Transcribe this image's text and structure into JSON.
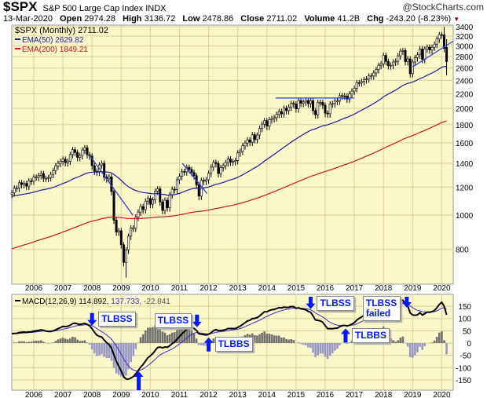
{
  "header": {
    "symbol": "$SPX",
    "name": "S&P 500 Large Cap Index",
    "exchange": "INDX",
    "brand": "@StockCharts.com",
    "date": "13-Mar-2020",
    "open_label": "Open",
    "open": "2974.28",
    "high_label": "High",
    "high": "3136.72",
    "low_label": "Low",
    "low": "2478.86",
    "close_label": "Close",
    "close": "2711.02",
    "volume_label": "Volume",
    "volume": "41.2B",
    "chg_label": "Chg",
    "chg": "-243.20 (-8.23%)"
  },
  "legend": {
    "price": "$SPX (Monthly) 2711.02",
    "ema50": "EMA(50) 2629.82",
    "ema200": "EMA(200) 1849.21",
    "macd": "MACD(12,26,9) 114.892,",
    "macd_signal": " 137.733,",
    "macd_hist": " -22.841"
  },
  "colors": {
    "background": "#faf7c8",
    "grid": "#d9d49c",
    "ema50": "#1a1aa0",
    "ema200": "#d0102a",
    "signal": "#3c2ccc",
    "hist_pos": "#707070",
    "hist_neg": "#9898c8",
    "annotation": "#0018ff",
    "trendline": "#2b3ee0"
  },
  "annotations": [
    {
      "text": "TLBSS",
      "panel": "macd",
      "date": 2008.0,
      "dir": "down"
    },
    {
      "text": "TLBSS",
      "panel": "macd",
      "date": 2011.6,
      "dir": "down"
    },
    {
      "text": "TLBBS",
      "panel": "macd",
      "date": 2012.0,
      "dir": "up"
    },
    {
      "text": "TLBSS",
      "panel": "macd",
      "date": 2015.5,
      "dir": "down"
    },
    {
      "text": "TLBBS",
      "panel": "macd",
      "date": 2016.7,
      "dir": "up"
    },
    {
      "text": "TLBSS failed",
      "panel": "macd",
      "date": 2018.8,
      "dir": "down"
    },
    {
      "text": "",
      "panel": "macd",
      "date": 2009.6,
      "dir": "up"
    }
  ],
  "chart_data": {
    "type": "candlestick",
    "title": "$SPX S&P 500 Large Cap Index (Monthly)",
    "start": "2005-04",
    "interval": "month",
    "y_scale": "log",
    "ylim": [
      660,
      3500
    ],
    "y_ticks": [
      800,
      1000,
      1200,
      1400,
      1600,
      1800,
      2000,
      2200,
      2400,
      2600,
      2800,
      3000,
      3200,
      3400
    ],
    "x_ticks": [
      "2006",
      "2007",
      "2008",
      "2009",
      "2010",
      "2011",
      "2012",
      "2013",
      "2014",
      "2015",
      "2016",
      "2017",
      "2018",
      "2019",
      "2020"
    ],
    "close": [
      1156,
      1191,
      1191,
      1234,
      1220,
      1228,
      1207,
      1249,
      1248,
      1280,
      1280,
      1294,
      1310,
      1270,
      1270,
      1276,
      1303,
      1335,
      1377,
      1400,
      1418,
      1438,
      1406,
      1420,
      1482,
      1530,
      1503,
      1455,
      1473,
      1526,
      1549,
      1481,
      1468,
      1378,
      1330,
      1322,
      1385,
      1400,
      1280,
      1267,
      1282,
      1166,
      968,
      896,
      903,
      825,
      735,
      797,
      872,
      919,
      919,
      987,
      1020,
      1057,
      1036,
      1095,
      1115,
      1073,
      1104,
      1169,
      1186,
      1089,
      1031,
      1101,
      1049,
      1141,
      1183,
      1180,
      1258,
      1286,
      1327,
      1325,
      1364,
      1345,
      1320,
      1292,
      1218,
      1131,
      1253,
      1246,
      1258,
      1312,
      1366,
      1408,
      1398,
      1310,
      1362,
      1379,
      1406,
      1441,
      1412,
      1416,
      1426,
      1498,
      1515,
      1569,
      1598,
      1631,
      1606,
      1686,
      1633,
      1682,
      1757,
      1806,
      1848,
      1783,
      1859,
      1872,
      1884,
      1924,
      1960,
      1931,
      2003,
      1972,
      2018,
      2068,
      2059,
      1995,
      2105,
      2068,
      2086,
      2107,
      2063,
      2104,
      1972,
      1920,
      2079,
      2080,
      2044,
      1940,
      1932,
      2060,
      2065,
      2097,
      2099,
      2174,
      2171,
      2168,
      2126,
      2199,
      2239,
      2279,
      2364,
      2363,
      2384,
      2412,
      2423,
      2470,
      2472,
      2519,
      2575,
      2648,
      2674,
      2824,
      2714,
      2641,
      2648,
      2705,
      2718,
      2816,
      2902,
      2914,
      2712,
      2760,
      2507,
      2704,
      2784,
      2834,
      2946,
      2752,
      2942,
      2980,
      2926,
      2977,
      3038,
      3141,
      3231,
      3226,
      2954,
      2711
    ],
    "overrides": [
      {
        "index": 47,
        "low": 666
      },
      {
        "index": 179,
        "open": 2974.28,
        "high": 3136.72,
        "low": 2478.86
      },
      {
        "index": 178,
        "high": 3393
      }
    ],
    "indicator_seeds": {
      "ema50": 1130,
      "ema200": 800,
      "ema12": 1140,
      "ema26": 1100,
      "signal": 38
    },
    "trendlines": [
      {
        "from": [
          2007.9,
          1480
        ],
        "to": [
          2009.4,
          1000
        ]
      },
      {
        "from": [
          2011.1,
          1400
        ],
        "to": [
          2011.95,
          1150
        ]
      },
      {
        "from": [
          2014.3,
          2140
        ],
        "to": [
          2017.0,
          2140
        ]
      },
      {
        "from": [
          2019.0,
          2620
        ],
        "to": [
          2020.4,
          3100
        ]
      }
    ],
    "macd": {
      "params": "12,26,9",
      "ylim": [
        -170,
        190
      ],
      "y_ticks": [
        -150,
        -100,
        -50,
        0,
        50,
        100,
        150
      ]
    }
  }
}
